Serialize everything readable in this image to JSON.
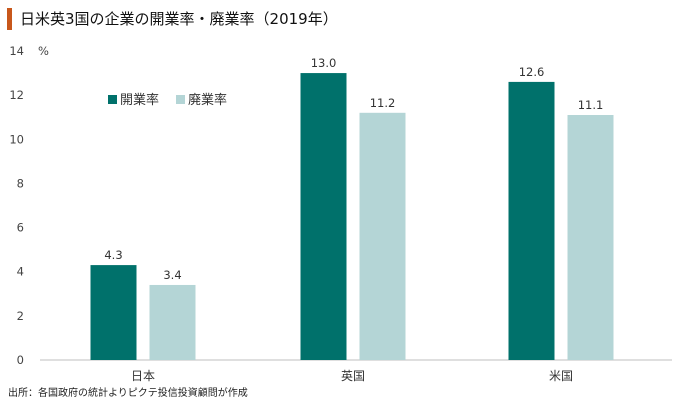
{
  "title": "日米英3国の企業の開業率・廃業率（2019年）",
  "source": "出所：各国政府の統計よりピクテ投信投資顧問が作成",
  "colors": {
    "accent": "#c8571b",
    "series1": "#00716b",
    "series2": "#b4d5d6"
  },
  "chart_data": {
    "type": "bar",
    "title": "日米英3国の企業の開業率・廃業率（2019年）",
    "categories": [
      "日本",
      "英国",
      "米国"
    ],
    "series": [
      {
        "name": "開業率",
        "values": [
          4.3,
          13.0,
          12.6
        ],
        "labels": [
          "4.3",
          "13.0",
          "12.6"
        ]
      },
      {
        "name": "廃業率",
        "values": [
          3.4,
          11.2,
          11.1
        ],
        "labels": [
          "3.4",
          "11.2",
          "11.1"
        ]
      }
    ],
    "ylabel": "%",
    "ylim": [
      0,
      14
    ],
    "yticks": [
      0,
      2,
      4,
      6,
      8,
      10,
      12,
      14
    ],
    "grid": false,
    "legend": "top-left"
  }
}
